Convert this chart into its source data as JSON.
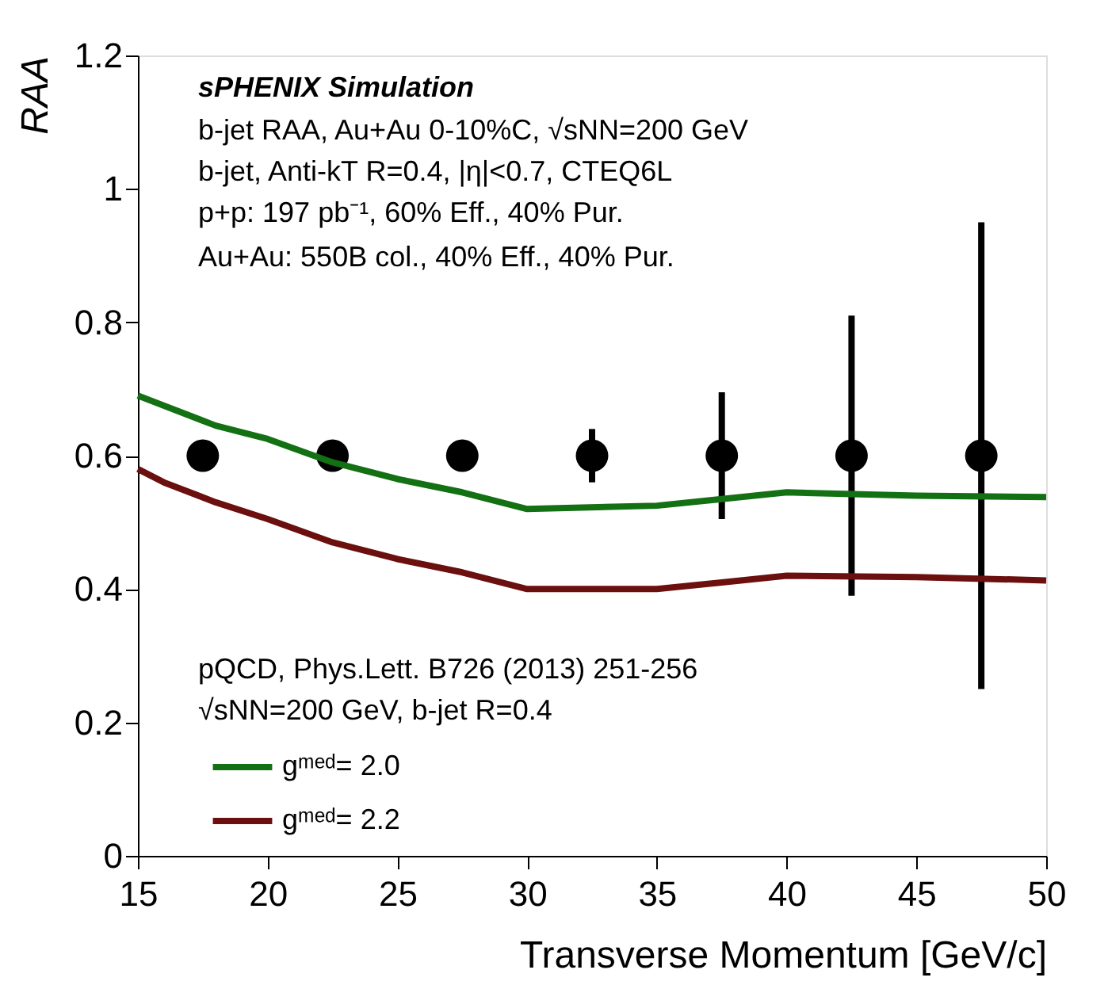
{
  "chart_data": {
    "type": "scatter",
    "xlabel": "Transverse Momentum [GeV/c]",
    "ylabel": "RAA",
    "xlim": [
      15,
      50
    ],
    "xticks": [
      15,
      20,
      25,
      30,
      35,
      40,
      45,
      50
    ],
    "ylim": [
      0,
      1.2
    ],
    "yticks": [
      0,
      0.2,
      0.4,
      0.6,
      0.8,
      1,
      1.2
    ],
    "grid": false,
    "legend": "bottom left",
    "marker": "circle",
    "annotations": [
      "sPHENIX Simulation",
      "b-jet RAA, Au+Au 0-10%C, √sNN=200 GeV",
      "b-jet, Anti-kT R=0.4, |η|<0.7, CTEQ6L",
      "p+p: 197 pb⁻¹, 60% Eff., 40% Pur.",
      "Au+Au: 550B col., 40% Eff., 40% Pur.",
      "pQCD, Phys.Lett. B726 (2013) 251-256",
      "√sNN=200 GeV, b-jet R=0.4"
    ],
    "series": [
      {
        "color": "#000000",
        "x": [
          17.5,
          22.5,
          27.5,
          32.5,
          37.5,
          42.5,
          47.5
        ],
        "values": [
          0.6,
          0.6,
          0.6,
          0.6,
          0.6,
          0.6,
          0.6
        ],
        "errors": [
          null,
          null,
          null,
          0.04,
          0.095,
          0.21,
          0.35
        ]
      },
      {
        "type": "line",
        "name": "gᵐᵉᵈ= 2.0",
        "color": "#137013",
        "line_style": "solid",
        "marker": "none",
        "x": [
          15,
          18,
          20,
          22.5,
          25,
          27.5,
          30,
          35,
          37.5,
          40,
          45,
          50
        ],
        "values": [
          0.69,
          0.645,
          0.625,
          0.59,
          0.565,
          0.545,
          0.52,
          0.525,
          0.535,
          0.545,
          0.54,
          0.538
        ]
      },
      {
        "type": "line",
        "name": "gᵐᵉᵈ= 2.2",
        "color": "#6b0f0f",
        "line_style": "solid",
        "marker": "none",
        "x": [
          15,
          16,
          18,
          20,
          22.5,
          25,
          27.5,
          30,
          35,
          37.5,
          40,
          45,
          50
        ],
        "values": [
          0.58,
          0.56,
          0.53,
          0.505,
          0.47,
          0.445,
          0.425,
          0.4,
          0.4,
          0.41,
          0.42,
          0.418,
          0.413
        ]
      }
    ]
  }
}
